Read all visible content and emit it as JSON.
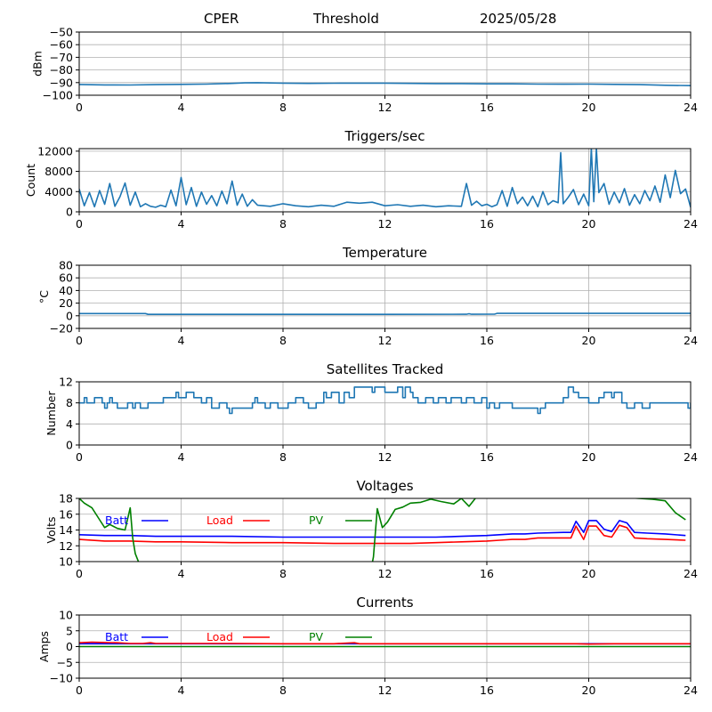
{
  "header": {
    "station": "CPER",
    "mode": "Threshold",
    "date": "2025/05/28"
  },
  "chart_data": [
    {
      "id": "noise",
      "type": "line",
      "title": "",
      "xlabel": "",
      "ylabel": "dBm",
      "xlim": [
        0,
        24
      ],
      "ylim": [
        -100,
        -50
      ],
      "xticks": [
        "0",
        "4",
        "8",
        "12",
        "16",
        "20",
        "24"
      ],
      "yticks": [
        "-50",
        "-60",
        "-70",
        "-80",
        "-90",
        "-100"
      ],
      "grid": true,
      "series": [
        {
          "color": "#1f77b4",
          "x": [
            0,
            1,
            2,
            3,
            4,
            5,
            6,
            6.5,
            7,
            8,
            9,
            10,
            11,
            12,
            13,
            14,
            15,
            16,
            17,
            18,
            19,
            20,
            21,
            22,
            23,
            24
          ],
          "y": [
            -91.5,
            -91.8,
            -91.9,
            -91.6,
            -91.4,
            -91.2,
            -90.6,
            -90.2,
            -90.1,
            -90.4,
            -90.6,
            -90.5,
            -90.4,
            -90.4,
            -90.6,
            -90.8,
            -90.8,
            -91.0,
            -91.0,
            -91.2,
            -91.3,
            -91.2,
            -91.4,
            -91.6,
            -92.1,
            -92.4
          ]
        }
      ]
    },
    {
      "id": "triggers",
      "type": "line",
      "title": "Triggers/sec",
      "xlabel": "",
      "ylabel": "Count",
      "xlim": [
        0,
        24
      ],
      "ylim": [
        0,
        12500
      ],
      "xticks": [
        "0",
        "4",
        "8",
        "12",
        "16",
        "20",
        "24"
      ],
      "yticks": [
        "0",
        "4000",
        "8000",
        "12000"
      ],
      "grid": true,
      "series": [
        {
          "color": "#1f77b4",
          "x": [
            0,
            0.2,
            0.4,
            0.6,
            0.8,
            1.0,
            1.2,
            1.4,
            1.6,
            1.8,
            2.0,
            2.2,
            2.4,
            2.6,
            2.8,
            3.0,
            3.2,
            3.4,
            3.6,
            3.8,
            4.0,
            4.2,
            4.4,
            4.6,
            4.8,
            5.0,
            5.2,
            5.4,
            5.6,
            5.8,
            6.0,
            6.2,
            6.4,
            6.6,
            6.8,
            7.0,
            7.5,
            8.0,
            8.5,
            9.0,
            9.5,
            10.0,
            10.5,
            11.0,
            11.5,
            12.0,
            12.5,
            13.0,
            13.5,
            14.0,
            14.5,
            15.0,
            15.2,
            15.4,
            15.6,
            15.8,
            16.0,
            16.2,
            16.4,
            16.6,
            16.8,
            17.0,
            17.2,
            17.4,
            17.6,
            17.8,
            18.0,
            18.2,
            18.4,
            18.6,
            18.8,
            18.9,
            19.0,
            19.2,
            19.4,
            19.6,
            19.8,
            20.0,
            20.1,
            20.2,
            20.3,
            20.4,
            20.6,
            20.8,
            21.0,
            21.2,
            21.4,
            21.6,
            21.8,
            22.0,
            22.2,
            22.4,
            22.6,
            22.8,
            23.0,
            23.2,
            23.4,
            23.6,
            23.8,
            24.0
          ],
          "y": [
            4500,
            1200,
            3800,
            1000,
            4200,
            1500,
            5600,
            1100,
            3000,
            5700,
            1300,
            3900,
            1000,
            1600,
            1100,
            900,
            1300,
            1000,
            4300,
            1200,
            6800,
            1400,
            4800,
            1100,
            3900,
            1500,
            3200,
            1200,
            4100,
            1600,
            6100,
            1300,
            3500,
            1100,
            2400,
            1300,
            1100,
            1600,
            1200,
            1000,
            1300,
            1100,
            1900,
            1700,
            1900,
            1200,
            1400,
            1100,
            1300,
            1000,
            1200,
            1100,
            5600,
            1300,
            2100,
            1200,
            1500,
            1000,
            1400,
            4200,
            1100,
            4800,
            1600,
            2900,
            1200,
            3100,
            1000,
            4000,
            1400,
            2200,
            1800,
            11700,
            1600,
            2900,
            4400,
            1400,
            3500,
            1200,
            12500,
            2000,
            12500,
            3800,
            5600,
            1500,
            3900,
            1800,
            4600,
            1300,
            3400,
            1600,
            4200,
            2200,
            5100,
            1900,
            7300,
            2800,
            8200,
            3600,
            4500,
            900
          ]
        }
      ]
    },
    {
      "id": "temperature",
      "type": "line",
      "title": "Temperature",
      "xlabel": "",
      "ylabel": "°C",
      "xlim": [
        0,
        24
      ],
      "ylim": [
        -20,
        80
      ],
      "xticks": [
        "0",
        "4",
        "8",
        "12",
        "16",
        "20",
        "24"
      ],
      "yticks": [
        "-20",
        "0",
        "20",
        "40",
        "60",
        "80"
      ],
      "grid": true,
      "series": [
        {
          "color": "#1f77b4",
          "x": [
            0,
            2.6,
            2.7,
            8,
            12,
            15.2,
            15.3,
            15.4,
            16.3,
            16.4,
            20,
            24
          ],
          "y": [
            3.5,
            3.5,
            2.2,
            2.2,
            2.2,
            2.4,
            3.2,
            2.4,
            2.6,
            3.8,
            3.8,
            3.8
          ]
        }
      ]
    },
    {
      "id": "satellites",
      "type": "line",
      "title": "Satellites Tracked",
      "xlabel": "",
      "ylabel": "Number",
      "xlim": [
        0,
        24
      ],
      "ylim": [
        0,
        12
      ],
      "xticks": [
        "0",
        "4",
        "8",
        "12",
        "16",
        "20",
        "24"
      ],
      "yticks": [
        "0",
        "4",
        "8",
        "12"
      ],
      "grid": true,
      "series": [
        {
          "color": "#1f77b4",
          "step": true,
          "x": [
            0,
            0.2,
            0.3,
            0.6,
            0.9,
            1.0,
            1.1,
            1.2,
            1.3,
            1.5,
            1.9,
            2.1,
            2.2,
            2.4,
            2.7,
            2.9,
            3.3,
            3.8,
            3.9,
            4.2,
            4.5,
            4.8,
            5.0,
            5.2,
            5.5,
            5.8,
            5.9,
            6.0,
            6.3,
            6.8,
            6.9,
            7.0,
            7.3,
            7.5,
            7.6,
            7.8,
            8.2,
            8.5,
            8.8,
            9.0,
            9.3,
            9.6,
            9.7,
            9.9,
            10.2,
            10.4,
            10.6,
            10.8,
            11.0,
            11.5,
            11.6,
            12.0,
            12.5,
            12.7,
            12.8,
            13.0,
            13.1,
            13.3,
            13.6,
            13.9,
            14.1,
            14.4,
            14.6,
            15.0,
            15.2,
            15.5,
            15.8,
            16.0,
            16.1,
            16.3,
            16.5,
            17.0,
            17.5,
            18.0,
            18.1,
            18.3,
            18.6,
            19.0,
            19.2,
            19.4,
            19.6,
            19.8,
            20.0,
            20.4,
            20.6,
            20.9,
            21.0,
            21.3,
            21.5,
            21.8,
            21.9,
            22.1,
            22.4,
            22.9,
            23.2,
            23.5,
            23.9,
            24.0
          ],
          "y": [
            8,
            9,
            8,
            9,
            8,
            7,
            8,
            9,
            8,
            7,
            8,
            7,
            8,
            7,
            8,
            8,
            9,
            10,
            9,
            10,
            9,
            8,
            9,
            7,
            8,
            7,
            6,
            7,
            7,
            8,
            9,
            8,
            7,
            8,
            8,
            7,
            8,
            9,
            8,
            7,
            8,
            10,
            9,
            10,
            8,
            10,
            9,
            11,
            11,
            10,
            11,
            10,
            11,
            9,
            11,
            10,
            9,
            8,
            9,
            8,
            9,
            8,
            9,
            8,
            9,
            8,
            9,
            7,
            8,
            7,
            8,
            7,
            7,
            6,
            7,
            8,
            8,
            9,
            11,
            10,
            9,
            9,
            8,
            9,
            10,
            9,
            10,
            8,
            7,
            8,
            8,
            7,
            8,
            8,
            8,
            8,
            7,
            8
          ]
        }
      ]
    },
    {
      "id": "voltages",
      "type": "line",
      "title": "Voltages",
      "xlabel": "",
      "ylabel": "Volts",
      "xlim": [
        0,
        24
      ],
      "ylim": [
        10,
        18
      ],
      "xticks": [
        "0",
        "4",
        "8",
        "12",
        "16",
        "20",
        "24"
      ],
      "yticks": [
        "10",
        "12",
        "14",
        "16",
        "18"
      ],
      "grid": true,
      "legend": {
        "placement": "top-left",
        "entries": [
          "Batt",
          "Load",
          "PV"
        ]
      },
      "series": [
        {
          "name": "Batt",
          "color": "#0000ff",
          "x": [
            0,
            1,
            2,
            3,
            4,
            6,
            8,
            10,
            11,
            12,
            13,
            14,
            15,
            16,
            16.5,
            17,
            17.5,
            18,
            19,
            19.3,
            19.5,
            19.8,
            20,
            20.3,
            20.6,
            20.9,
            21.2,
            21.5,
            21.8,
            22.3,
            23,
            23.8
          ],
          "y": [
            13.4,
            13.3,
            13.3,
            13.2,
            13.2,
            13.2,
            13.1,
            13.1,
            13.1,
            13.1,
            13.1,
            13.1,
            13.2,
            13.3,
            13.4,
            13.5,
            13.5,
            13.6,
            13.7,
            13.7,
            15.1,
            13.7,
            15.2,
            15.2,
            14.1,
            13.8,
            15.2,
            14.9,
            13.7,
            13.6,
            13.5,
            13.3
          ]
        },
        {
          "name": "Load",
          "color": "#ff0000",
          "x": [
            0,
            1,
            2,
            3,
            4,
            6,
            8,
            10,
            11,
            12,
            13,
            14,
            15,
            16,
            16.5,
            17,
            17.5,
            18,
            19,
            19.3,
            19.5,
            19.8,
            20,
            20.3,
            20.6,
            20.9,
            21.2,
            21.5,
            21.8,
            22.3,
            23,
            23.8
          ],
          "y": [
            12.8,
            12.6,
            12.6,
            12.5,
            12.5,
            12.4,
            12.4,
            12.3,
            12.3,
            12.3,
            12.3,
            12.4,
            12.5,
            12.6,
            12.7,
            12.8,
            12.8,
            13.0,
            13.0,
            13.0,
            14.5,
            12.8,
            14.5,
            14.5,
            13.3,
            13.1,
            14.6,
            14.3,
            13.0,
            12.9,
            12.8,
            12.7
          ]
        },
        {
          "name": "PV",
          "color": "#008000",
          "x": [
            0,
            0.2,
            0.5,
            0.8,
            1.0,
            1.2,
            1.5,
            1.8,
            2.0,
            2.1,
            2.2,
            2.3,
            2.35,
            11.5,
            11.55,
            11.7,
            11.9,
            12.1,
            12.4,
            12.7,
            13.0,
            13.4,
            13.8,
            14.2,
            14.7,
            15.0,
            15.3,
            15.6,
            16.0,
            18.0,
            19.5,
            21.5,
            22.5,
            23.0,
            23.4,
            23.8
          ],
          "y": [
            18.0,
            17.4,
            16.8,
            15.3,
            14.3,
            14.7,
            14.2,
            14.0,
            16.8,
            13.0,
            11.0,
            10.2,
            9.8,
            9.8,
            10.6,
            16.7,
            14.3,
            15.0,
            16.6,
            16.9,
            17.4,
            17.5,
            17.9,
            17.6,
            17.3,
            18.0,
            17.0,
            18.2,
            18.6,
            18.1,
            18.3,
            18.1,
            17.9,
            17.7,
            16.2,
            15.3
          ]
        }
      ]
    },
    {
      "id": "currents",
      "type": "line",
      "title": "Currents",
      "xlabel": "",
      "ylabel": "Amps",
      "xlim": [
        0,
        24
      ],
      "ylim": [
        -10,
        10
      ],
      "xticks": [
        "0",
        "4",
        "8",
        "12",
        "16",
        "20",
        "24"
      ],
      "yticks": [
        "-10",
        "-5",
        "0",
        "5",
        "10"
      ],
      "grid": true,
      "legend": {
        "placement": "top-left",
        "entries": [
          "Batt",
          "Load",
          "PV"
        ]
      },
      "series": [
        {
          "name": "Batt",
          "color": "#0000ff",
          "x": [
            0,
            24
          ],
          "y": [
            0.9,
            0.9
          ]
        },
        {
          "name": "Load",
          "color": "#ff0000",
          "x": [
            0,
            0.5,
            1,
            1.5,
            2,
            2.5,
            2.8,
            3,
            4,
            6,
            8,
            10,
            10.8,
            11,
            12,
            14,
            16,
            18,
            19.5,
            20,
            21,
            22,
            23,
            24
          ],
          "y": [
            1.2,
            1.4,
            1.3,
            1.2,
            1.0,
            1.0,
            1.2,
            1.0,
            1.0,
            1.0,
            0.9,
            0.9,
            1.2,
            0.9,
            0.9,
            0.9,
            0.9,
            0.9,
            0.9,
            0.8,
            0.9,
            0.9,
            0.9,
            0.9
          ]
        },
        {
          "name": "PV",
          "color": "#008000",
          "x": [
            0,
            24
          ],
          "y": [
            0.0,
            0.0
          ]
        }
      ]
    }
  ]
}
